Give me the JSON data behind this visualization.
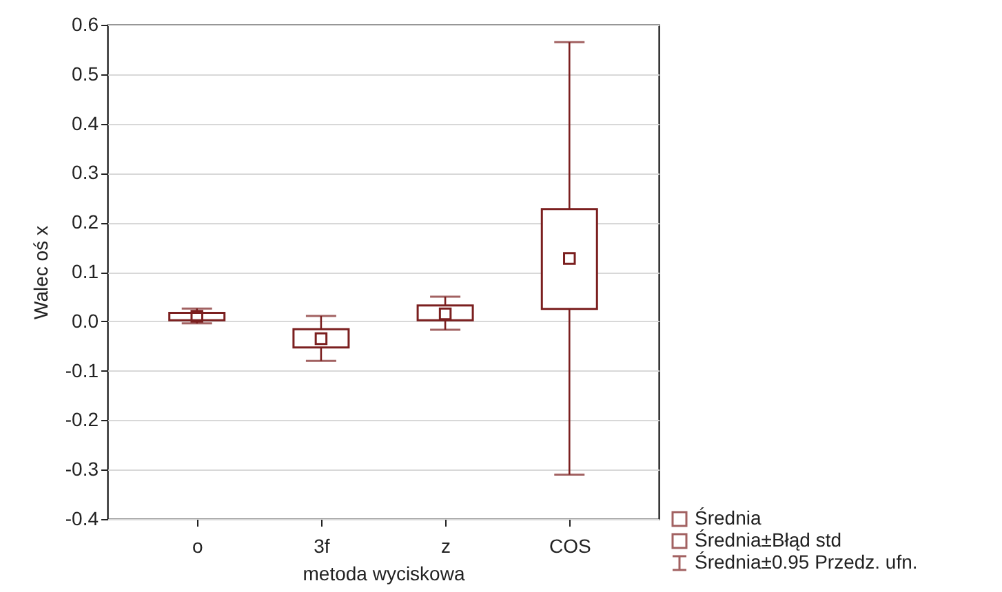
{
  "chart_data": {
    "type": "box",
    "xlabel": "metoda wyciskowa",
    "ylabel": "Walec oś x",
    "categories": [
      "o",
      "3f",
      "z",
      "COS"
    ],
    "boxes": [
      {
        "low": -0.004,
        "q1": 0.002,
        "median": 0.01,
        "q3": 0.017,
        "high": 0.026
      },
      {
        "low": -0.08,
        "q1": -0.053,
        "median": -0.035,
        "q3": -0.016,
        "high": 0.011
      },
      {
        "low": -0.017,
        "q1": 0.002,
        "median": 0.015,
        "q3": 0.032,
        "high": 0.05
      },
      {
        "low": -0.31,
        "q1": 0.025,
        "median": 0.127,
        "q3": 0.227,
        "high": 0.565
      }
    ],
    "color": "#7b1f1f",
    "ylim": [
      -0.4,
      0.6
    ],
    "yticks": [
      -0.4,
      -0.3,
      -0.2,
      -0.1,
      {
        "value": 0,
        "label": "0.0"
      },
      0.1,
      0.2,
      0.3,
      0.4,
      0.5,
      0.6
    ],
    "grid": "y",
    "annotations": [
      "Średnia",
      "Średnia±Błąd std",
      "Średnia±0.95 Przedz. ufn."
    ]
  }
}
